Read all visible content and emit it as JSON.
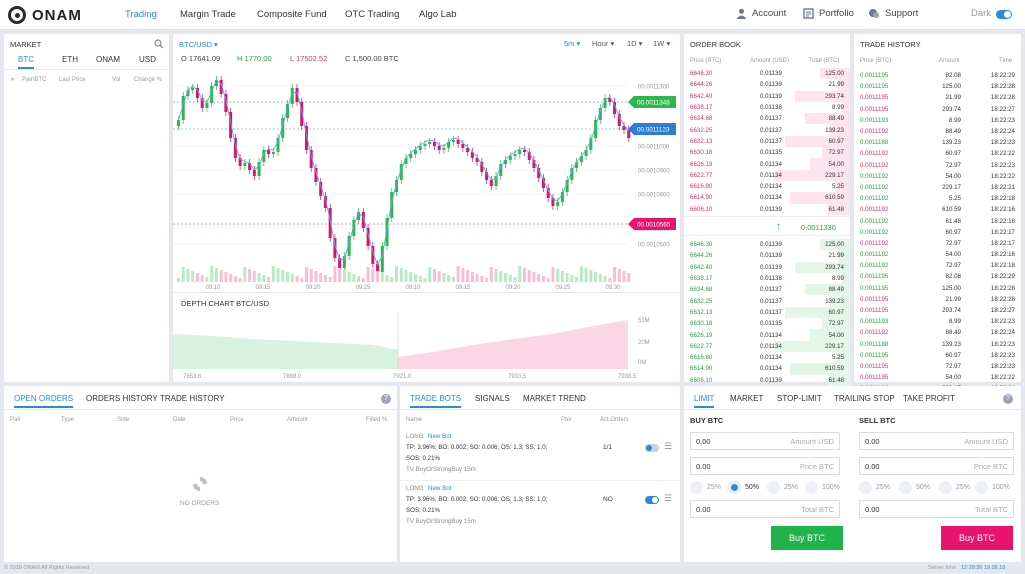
{
  "brand": {
    "name": "ONAM"
  },
  "nav": {
    "items": [
      {
        "label": "Trading"
      },
      {
        "label": "Margin Trade"
      },
      {
        "label": "Composite Fund"
      },
      {
        "label": "OTC Trading"
      },
      {
        "label": "Algo Lab"
      }
    ]
  },
  "header_right": {
    "account": "Account",
    "portfolio": "Portfolio",
    "support": "Support",
    "theme": "Dark"
  },
  "market": {
    "title": "MARKET",
    "tabs": [
      "BTC",
      "ETH",
      "ONAM",
      "USD"
    ],
    "columns": [
      "Pair/BTC",
      "Last Price",
      "Vol",
      "Change %"
    ]
  },
  "chart": {
    "pair": "BTC/USD",
    "open": "O 17641.09",
    "high": "H 1770.00",
    "low": "L 17502.52",
    "close": "C 1,500.00 BTC",
    "intervals": [
      "5m",
      "Hour",
      "1D",
      "1W"
    ],
    "price_ticks": [
      "00.0011300",
      "00.0011000",
      "00.0010900",
      "00.0010800",
      "00.0010600",
      "00.0010500"
    ],
    "time_ticks": [
      "09:10",
      "09:15",
      "09:20",
      "09:25",
      "09:10",
      "09:15",
      "09:20",
      "09:25",
      "09:30"
    ],
    "tag_green": "00.0011348",
    "tag_blue": "00.0011123",
    "tag_pink": "00.0010565"
  },
  "chart_data": {
    "type": "candlestick",
    "x": [
      "09:10",
      "09:15",
      "09:20",
      "09:25",
      "09:10",
      "09:15",
      "09:20",
      "09:25",
      "09:30"
    ],
    "ylabel": "",
    "ylim": [
      0.00105,
      0.00114
    ]
  },
  "depth": {
    "title": "DEPTH CHART  BTC/USD",
    "x_ticks": [
      "7853.6",
      "7888.0",
      "7921.0",
      "7933.5",
      "7938.5"
    ],
    "y_ticks": [
      "51M",
      "20M",
      "0M"
    ]
  },
  "orderbook": {
    "title": "ORDER BOOK",
    "columns": [
      "Price (BTC)",
      "Amount (USD)",
      "Total (BTC)"
    ],
    "asks": [
      [
        "6646.30",
        "0.01139",
        "125.00"
      ],
      [
        "6644.26",
        "0.01139",
        "21.99"
      ],
      [
        "6642.40",
        "0.01139",
        "293.74"
      ],
      [
        "6638.17",
        "0.01138",
        "8.99"
      ],
      [
        "6634.68",
        "0.01137",
        "88.49"
      ],
      [
        "6632.25",
        "0.01137",
        "139.23"
      ],
      [
        "6632.13",
        "0.01137",
        "60.97"
      ],
      [
        "6630.18",
        "0.01135",
        "72.97"
      ],
      [
        "6626.19",
        "0.01134",
        "54.00"
      ],
      [
        "6622.77",
        "0.01134",
        "229.17"
      ],
      [
        "6616.80",
        "0.01134",
        "5.25"
      ],
      [
        "6614.90",
        "0.01134",
        "610.59"
      ],
      [
        "6606.10",
        "0.01139",
        "61.48"
      ]
    ],
    "mid": "0.0011330",
    "bids": [
      [
        "6646.30",
        "0.01139",
        "125.00"
      ],
      [
        "6644.26",
        "0.01139",
        "21.99"
      ],
      [
        "6642.40",
        "0.01139",
        "293.74"
      ],
      [
        "6638.17",
        "0.01138",
        "8.99"
      ],
      [
        "6634.68",
        "0.01137",
        "88.49"
      ],
      [
        "6632.25",
        "0.01137",
        "139.23"
      ],
      [
        "6632.13",
        "0.01137",
        "60.97"
      ],
      [
        "6630.18",
        "0.01135",
        "72.97"
      ],
      [
        "6626.19",
        "0.01134",
        "54.00"
      ],
      [
        "6622.77",
        "0.01134",
        "229.17"
      ],
      [
        "6616.80",
        "0.01134",
        "5.25"
      ],
      [
        "6614.90",
        "0.01134",
        "610.59"
      ],
      [
        "6606.10",
        "0.01139",
        "61.48"
      ]
    ]
  },
  "history": {
    "title": "TRADE HISTORY",
    "columns": [
      "Price (BTC)",
      "Amount",
      "Time"
    ],
    "rows": [
      [
        "0.0011195",
        "82.08",
        "18:22:29",
        "g"
      ],
      [
        "0.0011195",
        "125.00",
        "18:22:28",
        "g"
      ],
      [
        "0.0011195",
        "21.99",
        "18:22:28",
        "r"
      ],
      [
        "0.0011195",
        "293.74",
        "18:22:27",
        "r"
      ],
      [
        "0.0011193",
        "8.99",
        "18:22:23",
        "g"
      ],
      [
        "0.0011192",
        "88.49",
        "18:22:24",
        "r"
      ],
      [
        "0.0011188",
        "139.23",
        "18:22:23",
        "g"
      ],
      [
        "0.0011192",
        "60.97",
        "18:22:22",
        "r"
      ],
      [
        "0.0011192",
        "72.97",
        "18:22:23",
        "r"
      ],
      [
        "0.0011192",
        "54.00",
        "18:22:22",
        "g"
      ],
      [
        "0.0011192",
        "229.17",
        "18:22:21",
        "g"
      ],
      [
        "0.0011192",
        "5.25",
        "18:22:18",
        "g"
      ],
      [
        "0.0011192",
        "610.59",
        "18:22:16",
        "r"
      ],
      [
        "0.0011192",
        "61.48",
        "18:22:18",
        "g"
      ],
      [
        "0.0011192",
        "60.97",
        "18:22:17",
        "g"
      ],
      [
        "0.0011192",
        "72.97",
        "18:22:17",
        "r"
      ],
      [
        "0.0011192",
        "54.00",
        "18:22:16",
        "g"
      ],
      [
        "0.0011192",
        "72.97",
        "18:22:18",
        "g"
      ],
      [
        "0.0011195",
        "82.08",
        "18:22:29",
        "g"
      ],
      [
        "0.0011195",
        "125.00",
        "18:22:28",
        "g"
      ],
      [
        "0.0011195",
        "21.99",
        "18:22:28",
        "r"
      ],
      [
        "0.0011195",
        "293.74",
        "18:22:27",
        "r"
      ],
      [
        "0.0011193",
        "8.99",
        "18:22:23",
        "g"
      ],
      [
        "0.0011192",
        "88.49",
        "18:22:24",
        "r"
      ],
      [
        "0.0011188",
        "139.23",
        "18:22:23",
        "g"
      ],
      [
        "0.0011195",
        "60.97",
        "18:22:23",
        "g"
      ],
      [
        "0.0011195",
        "72.97",
        "18:22:23",
        "r"
      ],
      [
        "0.0011195",
        "54.00",
        "18:22:22",
        "r"
      ],
      [
        "0.0011193",
        "229.17",
        "18:22:21",
        "g"
      ]
    ]
  },
  "orders": {
    "tabs": [
      "OPEN ORDERS",
      "ORDERS HISTORY",
      "TRADE HISTORY"
    ],
    "columns": [
      "Pair",
      "Type",
      "Side",
      "Date",
      "Price",
      "Amount",
      "Filled %"
    ],
    "empty": "NO ORDERS"
  },
  "bots": {
    "tabs": [
      "TRADE BOTS",
      "SIGNALS",
      "MARKET TREND"
    ],
    "columns": [
      "Name",
      "Pair",
      "Act.Orders"
    ],
    "items": [
      {
        "kind": "LONG",
        "name": "New Bot",
        "line1": "TP: 3.96%; BO: 0.002; SO: 0.006; OS: 1.3; SS: 1.0;",
        "line2": "SOS: 0.21%",
        "line3": "TV BuyOrStrongBuy 15m",
        "orders": "1/1"
      },
      {
        "kind": "LONG",
        "name": "New Bot",
        "line1": "TP: 3.96%; BO: 0.002; SO: 0.006; OS: 1.3; SS: 1.0;",
        "line2": "SOS: 0.21%",
        "line3": "TV BuyOrStrongBuy 15m",
        "orders": "NO"
      }
    ]
  },
  "form": {
    "tabs": [
      "LIMIT",
      "MARKET",
      "STOP-LIMIT",
      "TRAILING STOP",
      "TAKE PROFIT"
    ],
    "buy": {
      "title": "BUY BTC",
      "amount": "0.00",
      "amount_ph": "Amount USD",
      "price": "0.00",
      "price_ph": "Price BTC",
      "total": "0.00",
      "total_ph": "Total BTC",
      "button": "Buy BTC"
    },
    "sell": {
      "title": "SELL BTC",
      "amount": "0.00",
      "amount_ph": "Amount USD",
      "price": "0.00",
      "price_ph": "Price BTC",
      "total": "0.00",
      "total_ph": "Total BTC",
      "button": "Buy BTC"
    },
    "percents": [
      "25%",
      "50%",
      "25%",
      "100%"
    ],
    "selected_buy": 1
  },
  "footer": {
    "copyright": "© 2018 ONAM All Rights Reserved",
    "server_label": "Server time",
    "server_time": "12:28:36 19.08.18"
  }
}
